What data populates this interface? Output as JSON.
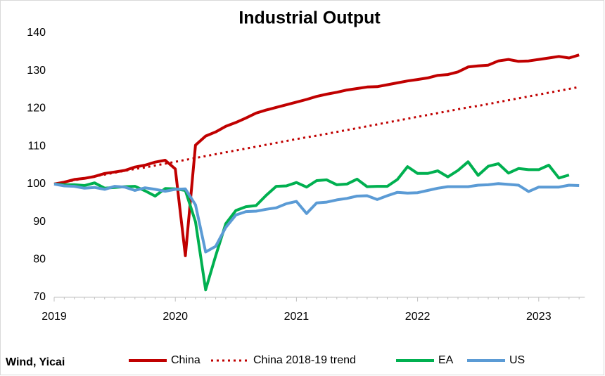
{
  "chart_data": {
    "type": "line",
    "title": "Industrial Output",
    "source": "Wind, Yicai",
    "categories": [
      "2019",
      null,
      null,
      null,
      null,
      null,
      null,
      null,
      null,
      null,
      null,
      null,
      "2020",
      null,
      null,
      null,
      null,
      null,
      null,
      null,
      null,
      null,
      null,
      null,
      "2021",
      null,
      null,
      null,
      null,
      null,
      null,
      null,
      null,
      null,
      null,
      null,
      "2022",
      null,
      null,
      null,
      null,
      null,
      null,
      null,
      null,
      null,
      null,
      null,
      "2023",
      null,
      null,
      null,
      null
    ],
    "ylim": [
      70,
      140
    ],
    "yticks": [
      70,
      80,
      90,
      100,
      110,
      120,
      130,
      140
    ],
    "grid": false,
    "legend": "bottom",
    "series": [
      {
        "name": "China",
        "color": "#c00000",
        "style": "solid",
        "values": [
          100,
          100.5,
          101.2,
          101.5,
          102,
          102.8,
          103.2,
          103.6,
          104.5,
          105,
          105.8,
          106.3,
          104,
          81,
          110.3,
          112.7,
          113.8,
          115.3,
          116.3,
          117.5,
          118.8,
          119.6,
          120.3,
          121,
          121.7,
          122.4,
          123.2,
          123.8,
          124.3,
          124.9,
          125.3,
          125.7,
          125.8,
          126.3,
          126.8,
          127.3,
          127.7,
          128.1,
          128.8,
          129,
          129.7,
          131,
          131.3,
          131.5,
          132.6,
          133,
          132.5,
          132.6,
          133,
          133.4,
          133.8,
          133.4,
          134.2
        ]
      },
      {
        "name": "China 2018-19 trend",
        "color": "#c00000",
        "style": "dotted",
        "values": [
          100,
          100.5,
          101.0,
          101.5,
          102.0,
          102.5,
          103.0,
          103.5,
          104.0,
          104.4,
          104.9,
          105.4,
          105.9,
          106.4,
          106.9,
          107.4,
          107.9,
          108.4,
          108.9,
          109.4,
          109.9,
          110.4,
          110.9,
          111.4,
          111.9,
          112.4,
          112.8,
          113.3,
          113.8,
          114.3,
          114.8,
          115.3,
          115.8,
          116.3,
          116.8,
          117.3,
          117.8,
          118.3,
          118.8,
          119.3,
          119.8,
          120.3,
          120.7,
          121.2,
          121.7,
          122.2,
          122.7,
          123.2,
          123.7,
          124.2,
          124.7,
          125.2,
          125.7
        ]
      },
      {
        "name": "EA",
        "color": "#00b050",
        "style": "solid",
        "values": [
          100,
          99.8,
          99.8,
          99.6,
          100.3,
          98.9,
          99.1,
          99.3,
          99.4,
          98.2,
          96.8,
          98.8,
          98.7,
          98.3,
          90,
          72,
          81,
          89.5,
          93,
          94,
          94.3,
          97,
          99.4,
          99.5,
          100.4,
          99.2,
          100.9,
          101.1,
          99.8,
          100,
          101.3,
          99.3,
          99.4,
          99.4,
          101.2,
          104.6,
          102.8,
          102.8,
          103.5,
          101.9,
          103.6,
          105.9,
          102.3,
          104.7,
          105.4,
          102.9,
          104.1,
          103.8,
          103.8,
          105,
          101.6,
          102.4,
          null
        ]
      },
      {
        "name": "US",
        "color": "#5b9bd5",
        "style": "solid",
        "values": [
          100,
          99.5,
          99.4,
          98.9,
          99.1,
          98.6,
          99.4,
          99.2,
          98.3,
          99,
          98.6,
          98.1,
          98.6,
          98.7,
          94.5,
          82,
          83.5,
          88.5,
          91.8,
          92.7,
          92.8,
          93.3,
          93.7,
          94.8,
          95.4,
          92.2,
          95,
          95.2,
          95.8,
          96.2,
          96.8,
          96.9,
          95.9,
          96.9,
          97.8,
          97.6,
          97.7,
          98.3,
          98.9,
          99.3,
          99.3,
          99.3,
          99.7,
          99.8,
          100.1,
          99.9,
          99.7,
          98,
          99.2,
          99.2,
          99.2,
          99.7,
          99.6
        ]
      }
    ]
  }
}
